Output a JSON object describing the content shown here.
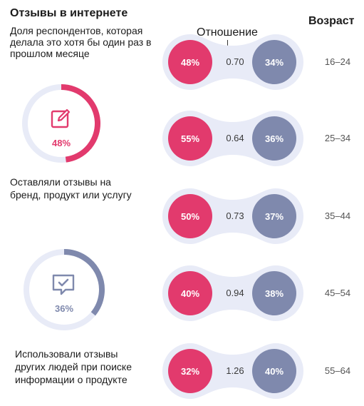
{
  "header": {
    "title": "Отзывы в интернете",
    "subtitle": "Доля респондентов, которая делала это хотя бы один раз в прошлом месяце",
    "ratio_label": "Отношение",
    "age_label": "Возраст"
  },
  "summary": [
    {
      "caption": "Оставляли отзывы на бренд, продукт или услугу",
      "value_label": "48%",
      "value": 48,
      "color": "#e23a6d",
      "icon": "edit-icon"
    },
    {
      "caption": "Использовали отзывы других людей при поиске информации о продукте",
      "value_label": "36%",
      "value": 36,
      "color": "#7f89ad",
      "icon": "message-check-icon"
    }
  ],
  "rows": [
    {
      "age": "16–24",
      "left": "48%",
      "ratio": "0.70",
      "right": "34%"
    },
    {
      "age": "25–34",
      "left": "55%",
      "ratio": "0.64",
      "right": "36%"
    },
    {
      "age": "35–44",
      "left": "50%",
      "ratio": "0.73",
      "right": "37%"
    },
    {
      "age": "45–54",
      "left": "40%",
      "ratio": "0.94",
      "right": "38%"
    },
    {
      "age": "55–64",
      "left": "32%",
      "ratio": "1.26",
      "right": "40%"
    }
  ],
  "chart_data": {
    "type": "bar",
    "title": "Отзывы в интернете",
    "subtitle": "Доля респондентов, которая делала это хотя бы один раз в прошлом месяце",
    "categories": [
      "16–24",
      "25–34",
      "35–44",
      "45–54",
      "55–64"
    ],
    "series": [
      {
        "name": "Оставляли отзывы на бренд, продукт или услугу",
        "values": [
          48,
          55,
          50,
          40,
          32
        ],
        "color": "#e23a6d"
      },
      {
        "name": "Использовали отзывы других людей при поиске информации о продукте",
        "values": [
          34,
          36,
          37,
          38,
          40
        ],
        "color": "#7f89ad"
      }
    ],
    "ratios": [
      0.7,
      0.64,
      0.73,
      0.94,
      1.26
    ],
    "totals": {
      "left": 48,
      "right": 36
    },
    "ratio_label": "Отношение",
    "category_label": "Возраст",
    "colors": {
      "left": "#e23a6d",
      "right": "#7f89ad",
      "track": "#e8ebf7"
    }
  }
}
